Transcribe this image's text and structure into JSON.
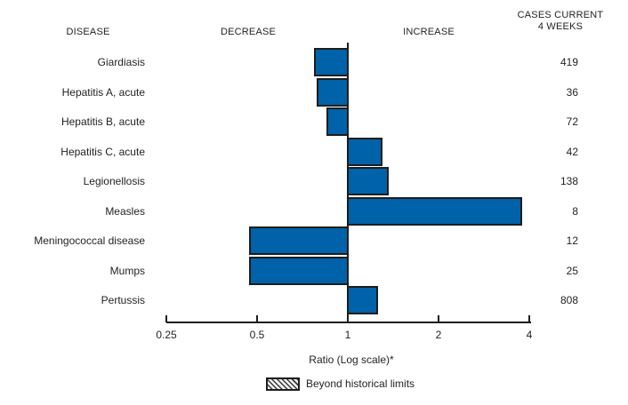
{
  "headers": {
    "disease": "DISEASE",
    "decrease": "DECREASE",
    "increase": "INCREASE",
    "cases": "CASES CURRENT\n4 WEEKS"
  },
  "chart_data": {
    "type": "bar",
    "variant": "horizontal-diverging",
    "scale": "log",
    "baseline_ratio": 1,
    "title": "",
    "xlabel": "Ratio (Log scale)*",
    "ylabel": "DISEASE",
    "xlim": [
      0.25,
      4
    ],
    "x_ticks": [
      0.25,
      0.5,
      1,
      2,
      4
    ],
    "x_tick_labels": [
      "0.25",
      "0.5",
      "1",
      "2",
      "4"
    ],
    "grid": false,
    "categories": [
      "Giardiasis",
      "Hepatitis A, acute",
      "Hepatitis B, acute",
      "Hepatitis C, acute",
      "Legionellosis",
      "Measles",
      "Meningococcal disease",
      "Mumps",
      "Pertussis"
    ],
    "series": [
      {
        "name": "Ratio (current 4 weeks vs historical)",
        "values": [
          0.77,
          0.79,
          0.85,
          1.3,
          1.37,
          3.8,
          0.47,
          0.47,
          1.26
        ]
      },
      {
        "name": "Cases current 4 weeks",
        "values": [
          419,
          36,
          72,
          42,
          138,
          8,
          12,
          25,
          808
        ]
      }
    ],
    "beyond_historical_limits": [
      false,
      false,
      false,
      false,
      false,
      false,
      false,
      false,
      false
    ],
    "legend": {
      "position": "bottom",
      "swatch_style": "hatched",
      "label": "Beyond historical limits"
    },
    "colors": {
      "bar_fill": "#0062a8",
      "bar_border": "#1d1d1b",
      "axis": "#1d1d1b",
      "text": "#231f20",
      "background": "#ffffff"
    }
  }
}
